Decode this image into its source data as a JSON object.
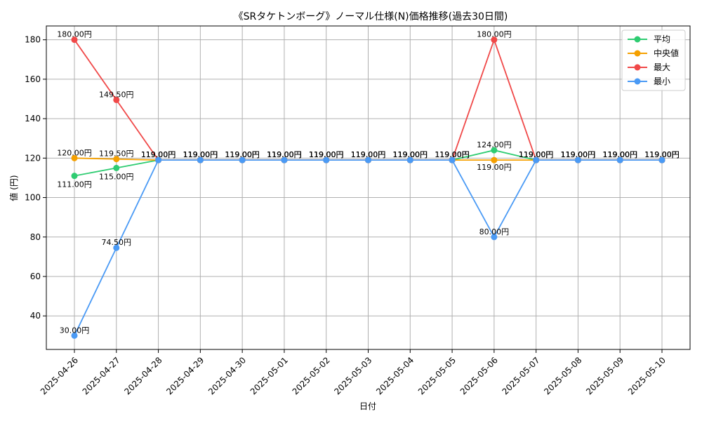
{
  "chart_data": {
    "type": "line",
    "title": "《SRタケトンボーグ》ノーマル仕様(N)価格推移(過去30日間)",
    "xlabel": "日付",
    "ylabel": "値 (円)",
    "ylim": [
      23,
      187
    ],
    "yticks": [
      40,
      60,
      80,
      100,
      120,
      140,
      160,
      180
    ],
    "grid": true,
    "legend_position": "top-right",
    "categories": [
      "2025-04-26",
      "2025-04-27",
      "2025-04-28",
      "2025-04-29",
      "2025-04-30",
      "2025-05-01",
      "2025-05-02",
      "2025-05-03",
      "2025-05-04",
      "2025-05-05",
      "2025-05-06",
      "2025-05-07",
      "2025-05-08",
      "2025-05-09",
      "2025-05-10"
    ],
    "label_suffix": "円",
    "series": [
      {
        "name": "平均",
        "color": "#2ecc71",
        "values": [
          111,
          115,
          119,
          119,
          119,
          119,
          119,
          119,
          119,
          119,
          124,
          119,
          119,
          119,
          119
        ]
      },
      {
        "name": "中央値",
        "color": "#f5a000",
        "values": [
          120,
          119.5,
          119,
          119,
          119,
          119,
          119,
          119,
          119,
          119,
          119,
          119,
          119,
          119,
          119
        ]
      },
      {
        "name": "最大",
        "color": "#f04848",
        "values": [
          180,
          149.5,
          119,
          119,
          119,
          119,
          119,
          119,
          119,
          119,
          180,
          119,
          119,
          119,
          119
        ]
      },
      {
        "name": "最小",
        "color": "#4a9af5",
        "values": [
          30,
          74.5,
          119,
          119,
          119,
          119,
          119,
          119,
          119,
          119,
          80,
          119,
          119,
          119,
          119
        ]
      }
    ]
  }
}
